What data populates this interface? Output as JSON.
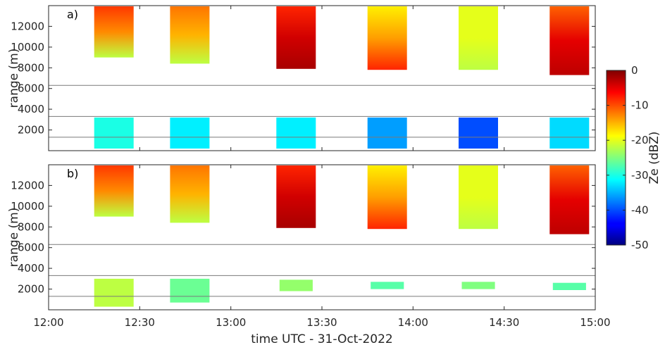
{
  "chart_data": [
    {
      "type": "heatmap",
      "panel_label": "a)",
      "ylabel": "range (m)",
      "xlabel": "",
      "xlim": [
        "12:00",
        "15:00"
      ],
      "ylim": [
        0,
        14000
      ],
      "y_ticks": [
        "2000",
        "4000",
        "6000",
        "8000",
        "10000",
        "12000"
      ],
      "x_ticks": [],
      "reference_lines_m": [
        1300,
        3300,
        6300
      ],
      "blocks": [
        {
          "start": "12:15",
          "end": "12:28",
          "upper": {
            "bottom_m": 9000,
            "mean_dbz": -13,
            "top_dbz": -9,
            "bottom_dbz": -22
          },
          "lower": {
            "bottom_m": 200,
            "top_m": 3200,
            "mean_dbz": -30
          }
        },
        {
          "start": "12:40",
          "end": "12:53",
          "upper": {
            "bottom_m": 8400,
            "mean_dbz": -15,
            "top_dbz": -12,
            "bottom_dbz": -22
          },
          "lower": {
            "bottom_m": 200,
            "top_m": 3200,
            "mean_dbz": -32
          }
        },
        {
          "start": "13:15",
          "end": "13:28",
          "upper": {
            "bottom_m": 7900,
            "mean_dbz": -4,
            "top_dbz": -8,
            "bottom_dbz": -2
          },
          "lower": {
            "bottom_m": 200,
            "top_m": 3200,
            "mean_dbz": -32
          }
        },
        {
          "start": "13:45",
          "end": "13:58",
          "upper": {
            "bottom_m": 7800,
            "mean_dbz": -14,
            "top_dbz": -18,
            "bottom_dbz": -8
          },
          "lower": {
            "bottom_m": 200,
            "top_m": 3200,
            "mean_dbz": -36
          }
        },
        {
          "start": "14:15",
          "end": "14:28",
          "upper": {
            "bottom_m": 7800,
            "mean_dbz": -20,
            "top_dbz": -20,
            "bottom_dbz": -22
          },
          "lower": {
            "bottom_m": 200,
            "top_m": 3200,
            "mean_dbz": -40
          }
        },
        {
          "start": "14:45",
          "end": "14:58",
          "upper": {
            "bottom_m": 7300,
            "mean_dbz": -5,
            "top_dbz": -11,
            "bottom_dbz": -3
          },
          "lower": {
            "bottom_m": 200,
            "top_m": 3200,
            "mean_dbz": -33
          }
        }
      ]
    },
    {
      "type": "heatmap",
      "panel_label": "b)",
      "ylabel": "range (m)",
      "xlabel": "time UTC - 31-Oct-2022",
      "xlim": [
        "12:00",
        "15:00"
      ],
      "ylim": [
        0,
        14000
      ],
      "y_ticks": [
        "2000",
        "4000",
        "6000",
        "8000",
        "10000",
        "12000"
      ],
      "x_ticks": [
        "12:00",
        "12:30",
        "13:00",
        "13:30",
        "14:00",
        "14:30",
        "15:00"
      ],
      "reference_lines_m": [
        1300,
        3300,
        6300
      ],
      "blocks": [
        {
          "start": "12:15",
          "end": "12:28",
          "upper": {
            "bottom_m": 9000,
            "mean_dbz": -13,
            "top_dbz": -9,
            "bottom_dbz": -22
          },
          "lower": {
            "bottom_m": 300,
            "top_m": 3000,
            "mean_dbz": -22
          }
        },
        {
          "start": "12:40",
          "end": "12:53",
          "upper": {
            "bottom_m": 8400,
            "mean_dbz": -15,
            "top_dbz": -12,
            "bottom_dbz": -22
          },
          "lower": {
            "bottom_m": 700,
            "top_m": 3000,
            "mean_dbz": -26
          }
        },
        {
          "start": "13:15",
          "end": "13:28",
          "upper": {
            "bottom_m": 7900,
            "mean_dbz": -4,
            "top_dbz": -8,
            "bottom_dbz": -2
          },
          "lower": {
            "bottom_m": 1800,
            "top_m": 2900,
            "mean_dbz": -24
          }
        },
        {
          "start": "13:45",
          "end": "13:58",
          "upper": {
            "bottom_m": 7800,
            "mean_dbz": -14,
            "top_dbz": -18,
            "bottom_dbz": -8
          },
          "lower": {
            "bottom_m": 2000,
            "top_m": 2700,
            "mean_dbz": -27
          }
        },
        {
          "start": "14:15",
          "end": "14:28",
          "upper": {
            "bottom_m": 7800,
            "mean_dbz": -20,
            "top_dbz": -20,
            "bottom_dbz": -22
          },
          "lower": {
            "bottom_m": 2000,
            "top_m": 2700,
            "mean_dbz": -25
          }
        },
        {
          "start": "14:45",
          "end": "14:58",
          "upper": {
            "bottom_m": 7300,
            "mean_dbz": -5,
            "top_dbz": -11,
            "bottom_dbz": -3
          },
          "lower": {
            "bottom_m": 1900,
            "top_m": 2600,
            "mean_dbz": -27
          }
        }
      ]
    },
    {
      "type": "colorbar",
      "label": "Ze (dBZ)",
      "range": [
        -50,
        0
      ],
      "ticks": [
        "0",
        "-10",
        "-20",
        "-30",
        "-40",
        "-50"
      ],
      "colormap": "jet"
    }
  ]
}
